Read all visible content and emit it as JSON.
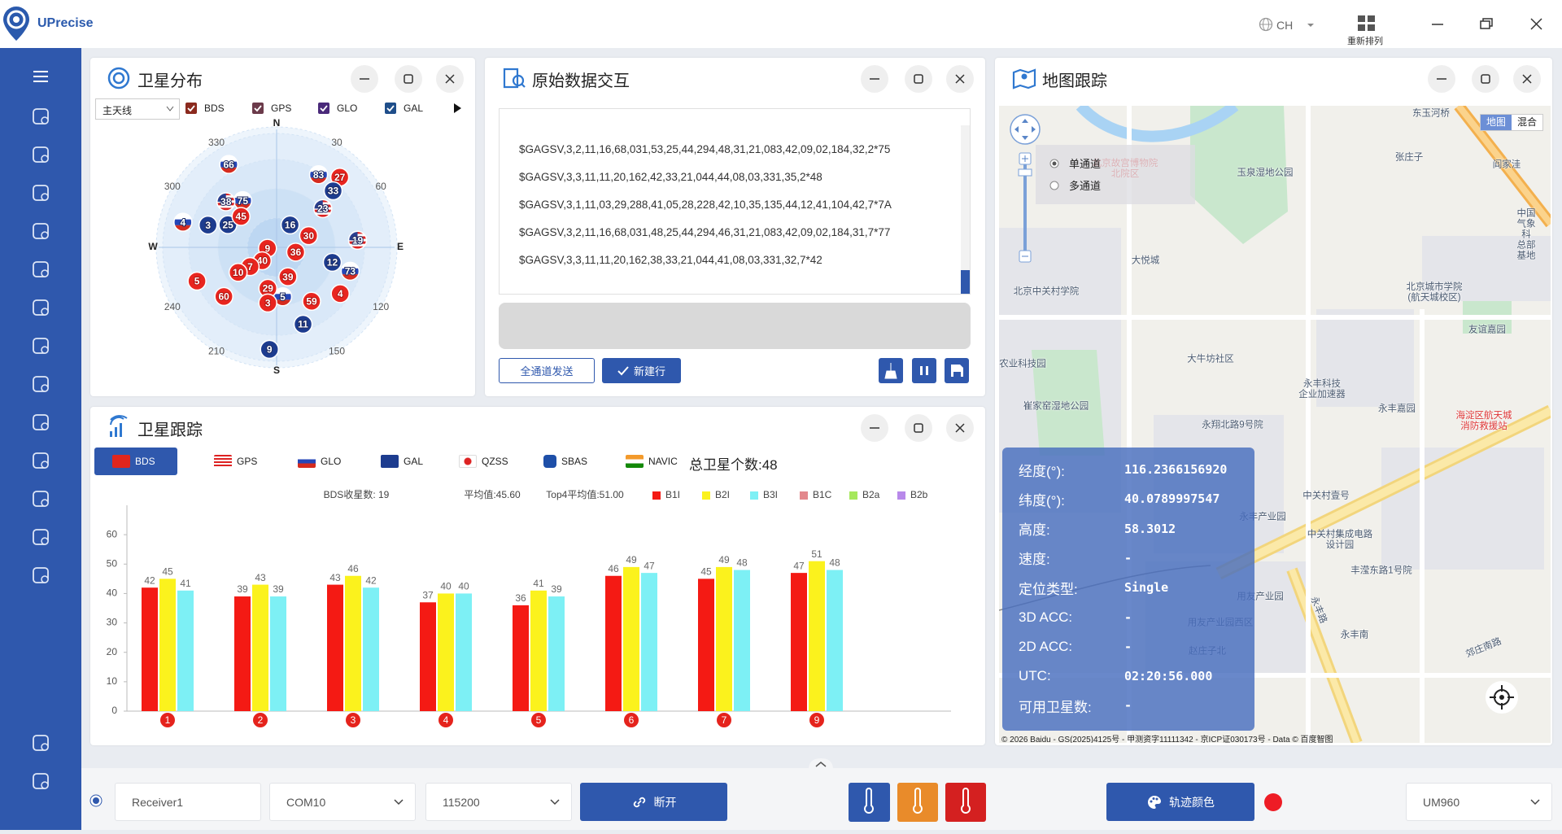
{
  "header": {
    "app_name": "UPrecise",
    "language": "CH",
    "rearrange": "重新排列"
  },
  "skyplot": {
    "title": "卫星分布",
    "antenna": "主天线",
    "systems": [
      "BDS",
      "GPS",
      "GLO",
      "GAL"
    ],
    "directions": {
      "n": "N",
      "e": "E",
      "s": "S",
      "w": "W"
    },
    "azimuth_ticks": [
      30,
      60,
      120,
      150,
      210,
      240,
      300,
      330
    ],
    "satellites": [
      {
        "id": "66",
        "system": "GLO",
        "azimuth": 330,
        "elevation": 17
      },
      {
        "id": "27",
        "system": "BDS",
        "azimuth": 42,
        "elevation": 18
      },
      {
        "id": "83",
        "system": "GLO",
        "azimuth": 30,
        "elevation": 26
      },
      {
        "id": "33",
        "system": "GAL",
        "azimuth": 45,
        "elevation": 29
      },
      {
        "id": "75",
        "system": "GLO",
        "azimuth": 324,
        "elevation": 46
      },
      {
        "id": "38",
        "system": "GPS",
        "azimuth": 312,
        "elevation": 38
      },
      {
        "id": "25",
        "system": "GAL",
        "azimuth": 295,
        "elevation": 49
      },
      {
        "id": "3",
        "system": "GAL",
        "azimuth": 288,
        "elevation": 35
      },
      {
        "id": "4",
        "system": "GLO",
        "azimuth": 285,
        "elevation": 16
      },
      {
        "id": "23",
        "system": "GPS",
        "azimuth": 50,
        "elevation": 44
      },
      {
        "id": "16",
        "system": "GAL",
        "azimuth": 31,
        "elevation": 70
      },
      {
        "id": "12",
        "system": "GAL",
        "azimuth": 105,
        "elevation": 46
      },
      {
        "id": "73",
        "system": "GLO",
        "azimuth": 108,
        "elevation": 31
      },
      {
        "id": "19",
        "system": "GPS",
        "azimuth": 85,
        "elevation": 28
      },
      {
        "id": "11",
        "system": "GAL",
        "azimuth": 161,
        "elevation": 28
      },
      {
        "id": "9",
        "system": "GAL",
        "azimuth": 184,
        "elevation": 12
      },
      {
        "id": "5",
        "system": "GLO",
        "azimuth": 173,
        "elevation": 52
      },
      {
        "id": "45",
        "system": "BDS",
        "azimuth": 311,
        "elevation": 54
      },
      {
        "id": "30",
        "system": "BDS",
        "azimuth": 70,
        "elevation": 64
      },
      {
        "id": "36",
        "system": "BDS",
        "azimuth": 104,
        "elevation": 75
      },
      {
        "id": "9",
        "system": "BDS",
        "azimuth": 264,
        "elevation": 83
      },
      {
        "id": "40",
        "system": "BDS",
        "azimuth": 227,
        "elevation": 75
      },
      {
        "id": "7",
        "system": "BDS",
        "azimuth": 234,
        "elevation": 65
      },
      {
        "id": "10",
        "system": "BDS",
        "azimuth": 237,
        "elevation": 55
      },
      {
        "id": "39",
        "system": "BDS",
        "azimuth": 159,
        "elevation": 66
      },
      {
        "id": "5",
        "system": "BDS",
        "azimuth": 247,
        "elevation": 24
      },
      {
        "id": "60",
        "system": "BDS",
        "azimuth": 227,
        "elevation": 35
      },
      {
        "id": "29",
        "system": "BDS",
        "azimuth": 192,
        "elevation": 58
      },
      {
        "id": "3",
        "system": "BDS",
        "azimuth": 189,
        "elevation": 47
      },
      {
        "id": "59",
        "system": "BDS",
        "azimuth": 147,
        "elevation": 41
      },
      {
        "id": "4",
        "system": "BDS",
        "azimuth": 126,
        "elevation": 30
      }
    ]
  },
  "raw_data": {
    "title": "原始数据交互",
    "lines": [
      "$GAGSV,3,2,11,16,68,031,53,25,44,294,48,31,21,083,42,09,02,184,32,2*75",
      "$GAGSV,3,3,11,11,20,162,42,33,21,044,44,08,03,331,35,2*48",
      "$GAGSV,3,1,11,03,29,288,41,05,28,228,42,10,35,135,44,12,41,104,42,7*7A",
      "$GAGSV,3,2,11,16,68,031,48,25,44,294,46,31,21,083,42,09,02,184,31,7*77",
      "$GAGSV,3,3,11,11,20,162,38,33,21,044,41,08,03,331,32,7*42"
    ],
    "send_all": "全通道发送",
    "new_line": "新建行"
  },
  "map": {
    "title": "地图跟踪",
    "channel_options": [
      "单通道",
      "多通道"
    ],
    "map_types": [
      "地图",
      "混合"
    ],
    "places": [
      "东玉河桥",
      "张庄子",
      "阎家洼",
      "北京故宫博物院\n北院区",
      "玉泉湿地公园",
      "中国气象科\n总部基地",
      "大悦城",
      "北京中关村学院",
      "北京城市学院\n(航天城校区)",
      "友谊嘉园",
      "大牛坊社区",
      "农业科技园",
      "永丰科技\n企业加速器",
      "崔家窑湿地公园",
      "永丰嘉园",
      "海淀区航天城\n消防救援站",
      "永翔北路9号院",
      "中关村壹号",
      "永丰产业园",
      "中关村集成电路\n设计园",
      "丰滢东路1号院",
      "用友产业园",
      "用友产业园西区",
      "永丰南",
      "赵庄子北",
      "永丰路",
      "郊庄南路"
    ],
    "copyright": "© 2026 Baidu - GS(2025)4125号 - 甲测资字11111342 - 京ICP证030173号 - Data © 百度智图",
    "info": [
      {
        "label": "经度(°):",
        "value": "116.2366156920"
      },
      {
        "label": "纬度(°):",
        "value": "40.0789997547"
      },
      {
        "label": "高度:",
        "value": "58.3012"
      },
      {
        "label": "速度:",
        "value": "-"
      },
      {
        "label": "定位类型:",
        "value": "Single"
      },
      {
        "label": "3D ACC:",
        "value": "-"
      },
      {
        "label": "2D ACC:",
        "value": "-"
      },
      {
        "label": "UTC:",
        "value": "02:20:56.000"
      },
      {
        "label": "可用卫星数:",
        "value": "-"
      }
    ]
  },
  "tracking": {
    "title": "卫星跟踪",
    "tabs": [
      "BDS",
      "GPS",
      "GLO",
      "GAL",
      "QZSS",
      "SBAS",
      "NAVIC"
    ],
    "total": "总卫星个数:48"
  },
  "chart_data": {
    "type": "bar",
    "annotations": [
      "BDS收星数: 19",
      "平均值:45.60",
      "Top4平均值:51.00"
    ],
    "categories": [
      "1",
      "2",
      "3",
      "4",
      "5",
      "6",
      "7",
      "9"
    ],
    "series": [
      {
        "name": "B1I",
        "color": "#f41a14",
        "values": [
          42,
          39,
          43,
          37,
          36,
          46,
          45,
          47
        ]
      },
      {
        "name": "B2I",
        "color": "#fbf21d",
        "values": [
          45,
          43,
          46,
          40,
          41,
          49,
          49,
          51
        ]
      },
      {
        "name": "B3I",
        "color": "#7df0f5",
        "values": [
          41,
          39,
          42,
          40,
          39,
          47,
          48,
          48
        ]
      },
      {
        "name": "B1C",
        "color": "#e3888c",
        "values": [
          null,
          null,
          null,
          null,
          null,
          null,
          null,
          null
        ]
      },
      {
        "name": "B2a",
        "color": "#a6e85c",
        "values": [
          null,
          null,
          null,
          null,
          null,
          null,
          null,
          null
        ]
      },
      {
        "name": "B2b",
        "color": "#b889ea",
        "values": [
          null,
          null,
          null,
          null,
          null,
          null,
          null,
          null
        ]
      }
    ],
    "ylim": [
      0,
      70
    ],
    "yticks": [
      0,
      10,
      20,
      30,
      40,
      50,
      60
    ]
  },
  "footer": {
    "receiver": "Receiver1",
    "port": "COM10",
    "baud": "115200",
    "disconnect": "断开",
    "track_color": "轨迹颜色",
    "device": "UM960"
  }
}
